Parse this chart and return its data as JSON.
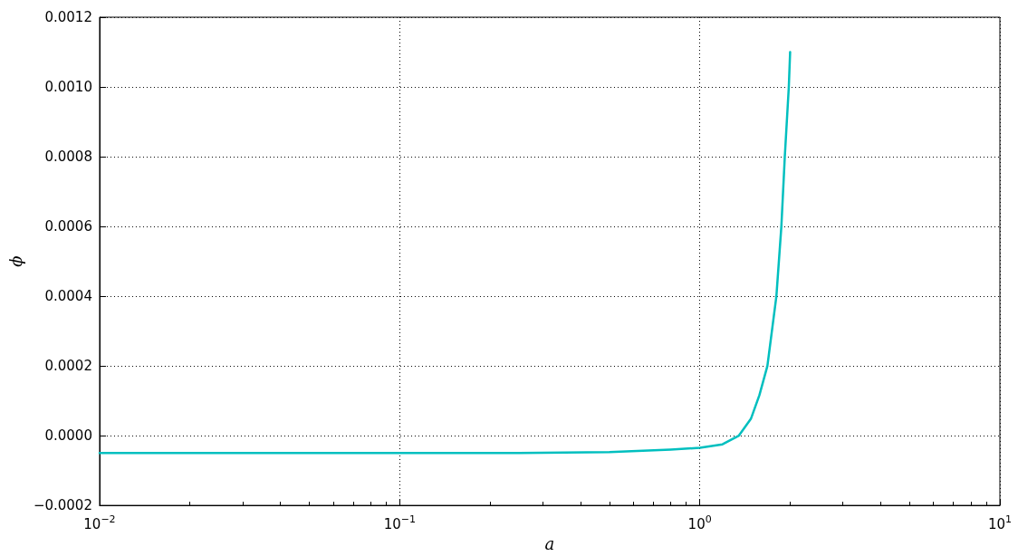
{
  "chart_data": {
    "type": "line",
    "xlabel": "a",
    "ylabel": "ϕ",
    "x": [
      0.01,
      0.03,
      0.1,
      0.25,
      0.5,
      0.8,
      1.0,
      1.19,
      1.35,
      1.48,
      1.58,
      1.68,
      1.8,
      1.87,
      1.92,
      1.98,
      2.0
    ],
    "series": [
      {
        "color": "#00bfbf",
        "values": [
          -5e-05,
          -5e-05,
          -5e-05,
          -5e-05,
          -4.7e-05,
          -4e-05,
          -3.5e-05,
          -2.5e-05,
          0.0,
          4.8e-05,
          0.000116,
          0.0002,
          0.0004,
          0.0006,
          0.0008,
          0.001,
          0.0011
        ]
      }
    ],
    "log": "x",
    "xlim": [
      0.01,
      10
    ],
    "xticks": [
      {
        "value": 0.01,
        "label": "10$^{−2}$"
      },
      {
        "value": 0.1,
        "label": "10$^{−1}$"
      },
      {
        "value": 1,
        "label": "10$^{0}$"
      },
      {
        "value": 10,
        "label": "10$^{1}$"
      }
    ],
    "ylim": [
      -0.0002,
      0.0012
    ],
    "yticks": [
      {
        "value": -0.0002,
        "label": "−0.0002"
      },
      {
        "value": 0,
        "label": "0.0000"
      },
      {
        "value": 0.0002,
        "label": "0.0002"
      },
      {
        "value": 0.0004,
        "label": "0.0004"
      },
      {
        "value": 0.0006,
        "label": "0.0006"
      },
      {
        "value": 0.0008,
        "label": "0.0008"
      },
      {
        "value": 0.001,
        "label": "0.0010"
      },
      {
        "value": 0.0012,
        "label": "0.0012"
      }
    ],
    "grid": true,
    "line_style": "solid",
    "marker": "none"
  }
}
